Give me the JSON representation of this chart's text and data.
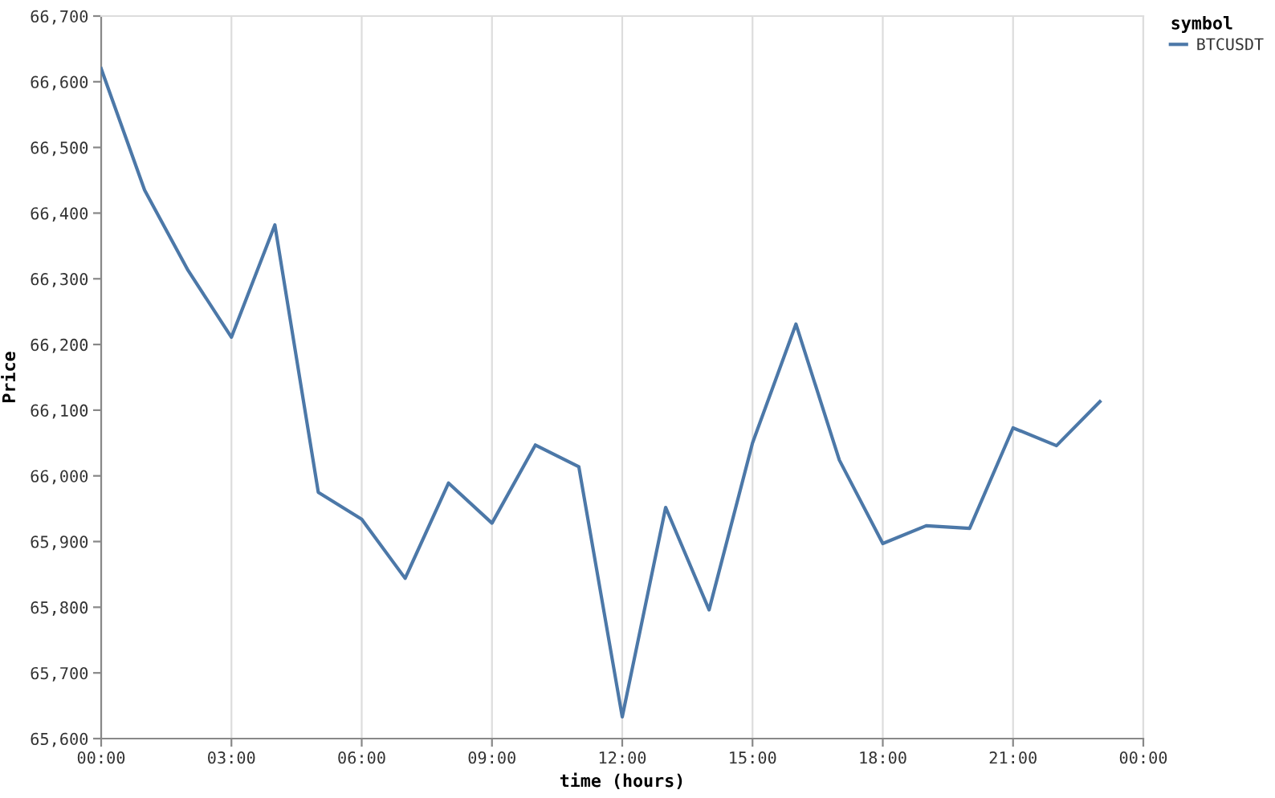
{
  "chart_data": {
    "type": "line",
    "xlabel": "time (hours)",
    "ylabel": "Price",
    "legend_title": "symbol",
    "x": [
      0,
      1,
      2,
      3,
      4,
      5,
      6,
      7,
      8,
      9,
      10,
      11,
      12,
      13,
      14,
      15,
      16,
      17,
      18,
      19,
      20,
      21,
      22,
      23
    ],
    "series": [
      {
        "name": "BTCUSDT",
        "color": "#4c78a8",
        "values": [
          66620,
          66435,
          66313,
          66211,
          66382,
          65975,
          65934,
          65844,
          65989,
          65928,
          66047,
          66014,
          65633,
          65952,
          65796,
          66050,
          66231,
          66024,
          65897,
          65924,
          65920,
          66073,
          66046,
          66113
        ]
      }
    ],
    "xlim": [
      0,
      24
    ],
    "xticks": [
      {
        "value": 0,
        "label": "00:00"
      },
      {
        "value": 3,
        "label": "03:00"
      },
      {
        "value": 6,
        "label": "06:00"
      },
      {
        "value": 9,
        "label": "09:00"
      },
      {
        "value": 12,
        "label": "12:00"
      },
      {
        "value": 15,
        "label": "15:00"
      },
      {
        "value": 18,
        "label": "18:00"
      },
      {
        "value": 21,
        "label": "21:00"
      },
      {
        "value": 24,
        "label": "00:00"
      }
    ],
    "ylim": [
      65600,
      66700
    ],
    "yticks": [
      {
        "value": 65600,
        "label": "65,600"
      },
      {
        "value": 65700,
        "label": "65,700"
      },
      {
        "value": 65800,
        "label": "65,800"
      },
      {
        "value": 65900,
        "label": "65,900"
      },
      {
        "value": 66000,
        "label": "66,000"
      },
      {
        "value": 66100,
        "label": "66,100"
      },
      {
        "value": 66200,
        "label": "66,200"
      },
      {
        "value": 66300,
        "label": "66,300"
      },
      {
        "value": 66400,
        "label": "66,400"
      },
      {
        "value": 66500,
        "label": "66,500"
      },
      {
        "value": 66600,
        "label": "66,600"
      },
      {
        "value": 66700,
        "label": "66,700"
      }
    ],
    "grid": "x",
    "legend": "top right",
    "marker": "none",
    "line_style": "solid"
  }
}
